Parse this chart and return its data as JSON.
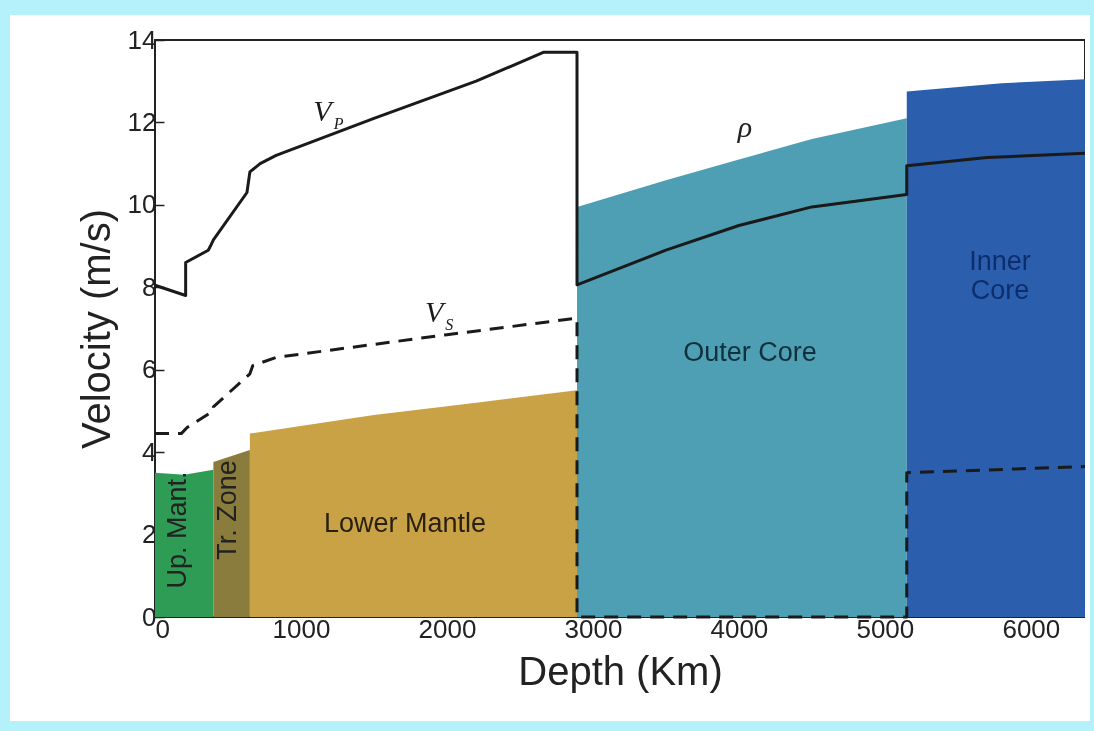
{
  "chart_data": {
    "type": "line",
    "xlabel": "Depth (Km)",
    "ylabel": "Velocity (m/s)",
    "xlim": [
      0,
      6371
    ],
    "ylim": [
      0,
      14
    ],
    "xticks": [
      0,
      1000,
      2000,
      3000,
      4000,
      5000,
      6000
    ],
    "yticks": [
      0,
      2,
      4,
      6,
      8,
      10,
      12,
      14
    ],
    "grid": false,
    "series": [
      {
        "type": "area",
        "color": "#2e9c55",
        "x": [
          0,
          200,
          400
        ],
        "values": [
          3.5,
          3.45,
          3.57
        ]
      },
      {
        "type": "area",
        "color": "#8a7c3c",
        "x": [
          400,
          650
        ],
        "values": [
          3.76,
          4.05
        ]
      },
      {
        "type": "area",
        "color": "#c9a246",
        "x": [
          650,
          1500,
          2200,
          2891
        ],
        "values": [
          4.45,
          4.9,
          5.2,
          5.5
        ]
      },
      {
        "type": "area",
        "color": "#4f9fb4",
        "x": [
          2891,
          3500,
          4000,
          4500,
          5150
        ],
        "values": [
          9.95,
          10.6,
          11.1,
          11.6,
          12.1
        ]
      },
      {
        "type": "area",
        "color": "#2b5fae",
        "x": [
          5150,
          5800,
          6371
        ],
        "values": [
          12.75,
          12.95,
          13.05
        ]
      },
      {
        "name": "V$_{P}$",
        "color": "#1a1a1a",
        "line_style": "solid",
        "x": [
          0,
          210,
          210,
          365,
          380,
          400,
          630,
          650,
          720,
          830,
          1500,
          2200,
          2660,
          2825,
          2891,
          2891,
          3500,
          4000,
          4500,
          5150,
          5150,
          5700,
          6371
        ],
        "values": [
          8.05,
          7.8,
          8.6,
          8.9,
          9.0,
          9.15,
          10.3,
          10.8,
          11.0,
          11.2,
          12.1,
          13.0,
          13.7,
          13.7,
          13.7,
          8.06,
          8.9,
          9.5,
          9.95,
          10.25,
          10.95,
          11.15,
          11.25
        ]
      },
      {
        "name": "V$_{S}$",
        "color": "#1a1a1a",
        "line_style": "dashed",
        "x": [
          0,
          180,
          220,
          400,
          400,
          650,
          670,
          830,
          2000,
          2891,
          2891,
          5150,
          5150,
          6371
        ],
        "values": [
          4.45,
          4.45,
          4.6,
          5.0,
          5.1,
          5.9,
          6.1,
          6.3,
          6.85,
          7.25,
          0,
          0,
          3.5,
          3.65
        ]
      }
    ],
    "annotations": [
      "Up. Mant.",
      "Tr. Zone",
      "Lower Mantle",
      "Outer Core",
      "Inner\nCore",
      "ρ"
    ]
  }
}
